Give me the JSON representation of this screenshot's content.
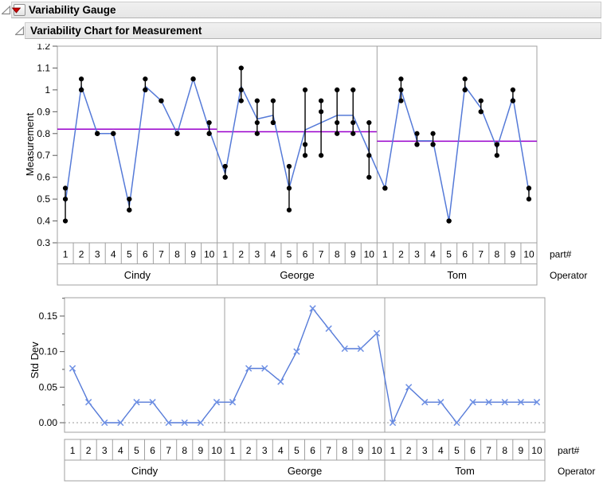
{
  "outline": {
    "title": "Variability Gauge",
    "subtitle": "Variability Chart for Measurement"
  },
  "colors": {
    "header_bg": "#ebebeb",
    "header_border": "#c2c2c2",
    "frame": "#a0a0a0",
    "tick": "#5a5a5a",
    "text": "#000000",
    "line_blue": "#557AD8",
    "marker_blue": "#6E90E4",
    "dot_black": "#000000",
    "operator_mean_purple": "#9900cc",
    "zero_line_gray": "#999999",
    "red_triangle": "#cc0000",
    "disclosure_gray": "#8a8a8a"
  },
  "chart_data": [
    {
      "name": "variability-chart",
      "type": "line",
      "ylabel": "Measurement",
      "xlabel": "part#",
      "group_label": "Operator",
      "ylim": [
        0.3,
        1.2
      ],
      "ytick_values": [
        0.3,
        0.4,
        0.5,
        0.6,
        0.7,
        0.8,
        0.9,
        1.0,
        1.1,
        1.2
      ],
      "yticks": [
        "0.3",
        "0.4",
        "0.5",
        "0.6",
        "0.7",
        "0.8",
        "0.9",
        "1",
        "1.1",
        "1.2"
      ],
      "x_categories": [
        "1",
        "2",
        "3",
        "4",
        "5",
        "6",
        "7",
        "8",
        "9",
        "10"
      ],
      "groups": [
        "Cindy",
        "George",
        "Tom"
      ],
      "show_range_bars": true,
      "connect_cell_means": true,
      "series": [
        {
          "name": "Cindy",
          "measurements": [
            [
              0.55,
              0.5,
              0.4
            ],
            [
              1.05,
              1.0,
              1.0
            ],
            [
              0.8,
              0.8,
              0.8
            ],
            [
              0.8,
              0.8,
              0.8
            ],
            [
              0.5,
              0.45,
              0.45
            ],
            [
              1.05,
              1.0,
              1.0
            ],
            [
              0.95,
              0.95,
              0.95
            ],
            [
              0.8,
              0.8,
              0.8
            ],
            [
              1.05,
              1.05,
              1.05
            ],
            [
              0.85,
              0.8,
              0.8
            ]
          ],
          "cell_means": [
            0.4833,
            1.0167,
            0.8,
            0.8,
            0.4667,
            1.0167,
            0.95,
            0.8,
            1.05,
            0.8167
          ],
          "operator_mean": 0.82
        },
        {
          "name": "George",
          "measurements": [
            [
              0.65,
              0.6,
              0.6
            ],
            [
              1.1,
              1.0,
              0.95
            ],
            [
              0.95,
              0.85,
              0.8
            ],
            [
              0.95,
              0.85,
              0.85
            ],
            [
              0.65,
              0.55,
              0.45
            ],
            [
              1.0,
              0.75,
              0.7
            ],
            [
              0.95,
              0.9,
              0.7
            ],
            [
              1.0,
              0.85,
              0.8
            ],
            [
              1.0,
              0.85,
              0.8
            ],
            [
              0.85,
              0.7,
              0.6
            ]
          ],
          "cell_means": [
            0.6167,
            1.0167,
            0.8667,
            0.8833,
            0.55,
            0.8167,
            0.85,
            0.8833,
            0.8833,
            0.7167
          ],
          "operator_mean": 0.8083
        },
        {
          "name": "Tom",
          "measurements": [
            [
              0.55,
              0.55,
              0.55
            ],
            [
              1.05,
              1.0,
              0.95
            ],
            [
              0.8,
              0.75,
              0.75
            ],
            [
              0.8,
              0.75,
              0.75
            ],
            [
              0.4,
              0.4,
              0.4
            ],
            [
              1.05,
              1.0,
              1.0
            ],
            [
              0.95,
              0.9,
              0.9
            ],
            [
              0.75,
              0.75,
              0.7
            ],
            [
              1.0,
              0.95,
              0.95
            ],
            [
              0.55,
              0.55,
              0.5
            ]
          ],
          "cell_means": [
            0.55,
            1.0,
            0.7667,
            0.7667,
            0.4,
            1.0167,
            0.9167,
            0.7333,
            0.9667,
            0.5333
          ],
          "operator_mean": 0.765
        }
      ]
    },
    {
      "name": "stddev-chart",
      "type": "line",
      "ylabel": "Std Dev",
      "xlabel": "part#",
      "group_label": "Operator",
      "ylim": [
        0,
        0.15
      ],
      "ytick_values": [
        0.0,
        0.05,
        0.1,
        0.15
      ],
      "yticks": [
        "0.00",
        "0.05",
        "0.10",
        "0.15"
      ],
      "minor_tick_values": [
        0.025,
        0.075,
        0.125,
        0.175
      ],
      "zero_reference_line": true,
      "x_categories": [
        "1",
        "2",
        "3",
        "4",
        "5",
        "6",
        "7",
        "8",
        "9",
        "10"
      ],
      "groups": [
        "Cindy",
        "George",
        "Tom"
      ],
      "series": [
        {
          "name": "Cindy",
          "values": [
            0.0764,
            0.0289,
            0,
            0,
            0.0289,
            0.0289,
            0,
            0,
            0,
            0.0289
          ]
        },
        {
          "name": "George",
          "values": [
            0.0289,
            0.0764,
            0.0764,
            0.0577,
            0.1,
            0.1607,
            0.1323,
            0.1041,
            0.1041,
            0.1258
          ]
        },
        {
          "name": "Tom",
          "values": [
            0,
            0.05,
            0.0289,
            0.0289,
            0,
            0.0289,
            0.0289,
            0.0289,
            0.0289,
            0.0289
          ]
        }
      ]
    }
  ]
}
